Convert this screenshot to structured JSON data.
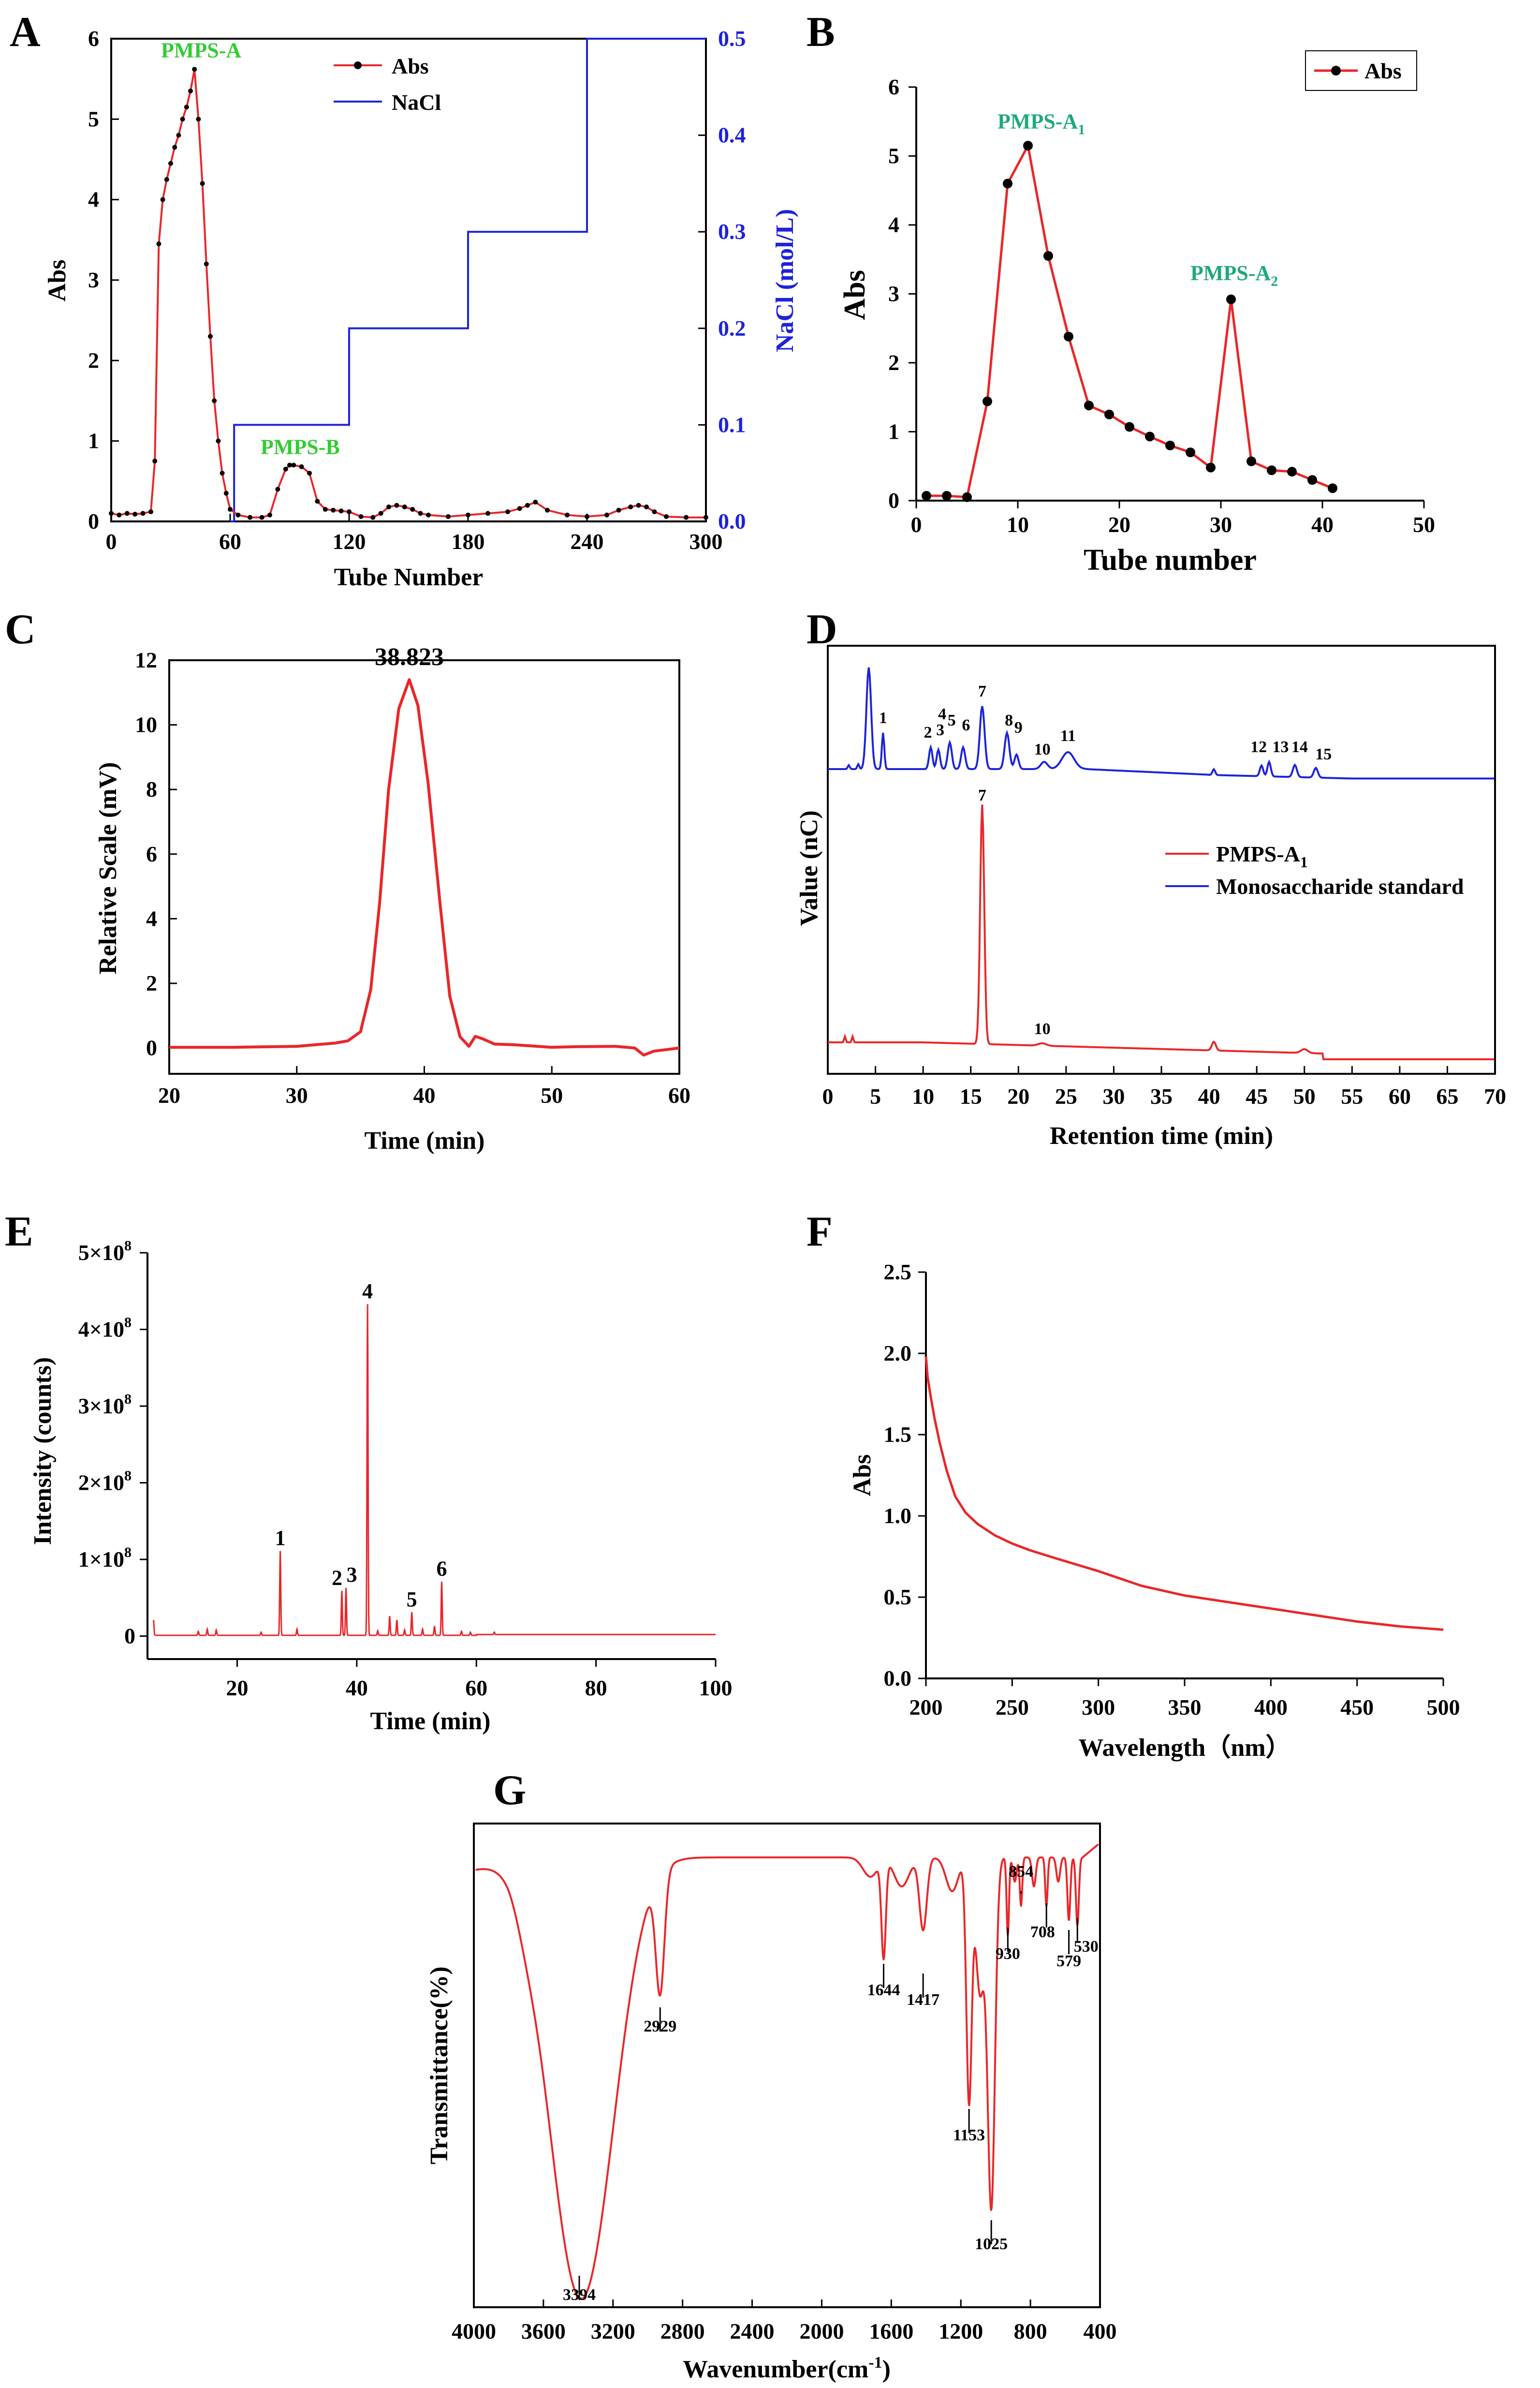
{
  "colors": {
    "red": "#e8272a",
    "blue": "#1d23d9",
    "green": "#33cc33",
    "teal": "#20a87a",
    "axis": "#000000"
  },
  "chart_data": [
    {
      "panel": "A",
      "type": "line",
      "xlabel": "Tube Number",
      "ylabel": "Abs",
      "y2label": "NaCl (mol/L)",
      "xlim": [
        0,
        300
      ],
      "ylim": [
        0,
        6
      ],
      "y2lim": [
        0,
        0.5
      ],
      "xticks": [
        "0",
        "60",
        "120",
        "180",
        "240",
        "300"
      ],
      "yticks": [
        "0",
        "1",
        "2",
        "3",
        "4",
        "5",
        "6"
      ],
      "y2ticks": [
        "0.0",
        "0.1",
        "0.2",
        "0.3",
        "0.4",
        "0.5"
      ],
      "legend": "top-center",
      "series": [
        {
          "name": "Abs",
          "color": "#e8272a",
          "marker": "dot",
          "x": [
            0,
            4,
            8,
            12,
            16,
            20,
            22,
            24,
            26,
            28,
            30,
            32,
            34,
            36,
            38,
            40,
            42,
            44,
            46,
            48,
            50,
            52,
            54,
            56,
            58,
            60,
            64,
            70,
            76,
            80,
            84,
            88,
            90,
            92,
            96,
            100,
            104,
            108,
            112,
            116,
            120,
            126,
            132,
            136,
            140,
            144,
            148,
            152,
            156,
            160,
            170,
            180,
            190,
            200,
            206,
            210,
            214,
            220,
            230,
            240,
            250,
            256,
            262,
            266,
            270,
            274,
            280,
            290,
            300
          ],
          "y": [
            0.1,
            0.08,
            0.1,
            0.09,
            0.1,
            0.12,
            0.75,
            3.45,
            4.0,
            4.25,
            4.45,
            4.65,
            4.8,
            5.0,
            5.15,
            5.35,
            5.62,
            5.0,
            4.2,
            3.2,
            2.3,
            1.5,
            1.0,
            0.6,
            0.35,
            0.15,
            0.08,
            0.05,
            0.05,
            0.08,
            0.4,
            0.65,
            0.7,
            0.7,
            0.68,
            0.6,
            0.25,
            0.15,
            0.14,
            0.13,
            0.12,
            0.06,
            0.05,
            0.1,
            0.18,
            0.2,
            0.18,
            0.15,
            0.1,
            0.08,
            0.06,
            0.08,
            0.1,
            0.12,
            0.16,
            0.2,
            0.24,
            0.14,
            0.08,
            0.06,
            0.08,
            0.14,
            0.18,
            0.2,
            0.18,
            0.12,
            0.06,
            0.05,
            0.05
          ]
        },
        {
          "name": "NaCl",
          "color": "#1d23d9",
          "axis": "y2",
          "x": [
            60,
            62,
            62,
            120,
            120,
            180,
            180,
            240,
            240,
            300
          ],
          "y": [
            0.0,
            0.0,
            0.1,
            0.1,
            0.2,
            0.2,
            0.3,
            0.3,
            0.5,
            0.5
          ]
        }
      ],
      "annotations": [
        {
          "text": "PMPS-A",
          "x": 30,
          "y": 5.8
        },
        {
          "text": "PMPS-B",
          "x": 90,
          "y": 0.9
        }
      ]
    },
    {
      "panel": "B",
      "type": "line",
      "xlabel": "Tube number",
      "ylabel": "Abs",
      "xlim": [
        0,
        50
      ],
      "ylim": [
        0,
        6
      ],
      "xticks": [
        "0",
        "10",
        "20",
        "30",
        "40",
        "50"
      ],
      "yticks": [
        "0",
        "1",
        "2",
        "3",
        "4",
        "5",
        "6"
      ],
      "legend": "top-right",
      "series": [
        {
          "name": "Abs",
          "color": "#e8272a",
          "marker": "dot",
          "x": [
            1,
            3,
            5,
            7,
            9,
            11,
            13,
            15,
            17,
            19,
            21,
            23,
            25,
            27,
            29,
            31,
            33,
            35,
            37,
            39,
            41
          ],
          "y": [
            0.07,
            0.07,
            0.05,
            1.44,
            4.6,
            5.15,
            3.55,
            2.38,
            1.38,
            1.25,
            1.07,
            0.93,
            0.8,
            0.7,
            0.48,
            2.92,
            0.57,
            0.44,
            0.42,
            0.3,
            0.18
          ]
        }
      ],
      "annotations": [
        {
          "text": "PMPS-A",
          "sub": "1",
          "x": 8,
          "y": 5.4
        },
        {
          "text": "PMPS-A",
          "sub": "2",
          "x": 27,
          "y": 3.2
        }
      ]
    },
    {
      "panel": "C",
      "type": "line",
      "xlabel": "Time (min)",
      "ylabel": "Relative Scale (mV)",
      "xlim": [
        20,
        60
      ],
      "ylim": [
        -0.8,
        12
      ],
      "xticks": [
        "20",
        "30",
        "40",
        "50",
        "60"
      ],
      "yticks": [
        "0",
        "2",
        "4",
        "6",
        "8",
        "10",
        "12"
      ],
      "series": [
        {
          "color": "#e8272a",
          "x": [
            20,
            25,
            30,
            33,
            34,
            35,
            35.8,
            36.5,
            37.2,
            38,
            38.823,
            39.5,
            40.3,
            41.2,
            42,
            42.8,
            43.5,
            44,
            44.6,
            45.5,
            47,
            50,
            52,
            55,
            56.5,
            57.2,
            58,
            60
          ],
          "y": [
            0.02,
            0.02,
            0.05,
            0.15,
            0.22,
            0.5,
            1.8,
            4.5,
            8.0,
            10.5,
            11.4,
            10.6,
            8.2,
            4.6,
            1.6,
            0.35,
            0.05,
            0.36,
            0.28,
            0.12,
            0.1,
            0.02,
            0.04,
            0.05,
            0.0,
            -0.22,
            -0.1,
            0.0
          ]
        }
      ],
      "annotations": [
        {
          "text": "38.823",
          "x": 38.823,
          "y": 11.4
        }
      ]
    },
    {
      "panel": "D",
      "type": "line",
      "xlabel": "Retention time (min)",
      "ylabel": "Value (nC)",
      "xlim": [
        0,
        70
      ],
      "xticks": [
        "0",
        "5",
        "10",
        "15",
        "20",
        "25",
        "30",
        "35",
        "40",
        "45",
        "50",
        "55",
        "60",
        "65",
        "70"
      ],
      "legend": "right",
      "series": [
        {
          "name": "Monosaccharide standard",
          "color": "#1d23d9",
          "peaks": [
            "1",
            "2",
            "3",
            "4",
            "5",
            "6",
            "7",
            "8",
            "9",
            "10",
            "11",
            "12",
            "13",
            "14",
            "15"
          ]
        },
        {
          "name": "PMPS-A",
          "name_sub": "1",
          "color": "#e8272a",
          "peaks": [
            "7",
            "10"
          ]
        }
      ]
    },
    {
      "panel": "E",
      "type": "line",
      "xlabel": "Time (min)",
      "ylabel": "Intensity (counts)",
      "xlim": [
        5,
        100
      ],
      "ylim": [
        -0.3,
        5
      ],
      "xticks": [
        "20",
        "40",
        "60",
        "80",
        "100"
      ],
      "yticks": [
        "0",
        "1×10",
        "2×10",
        "3×10",
        "4×10",
        "5×10"
      ],
      "ytick_exp": "8",
      "series": [
        {
          "color": "#e8272a",
          "peaks": [
            {
              "label": "1",
              "x": 27.2,
              "y": 1.1
            },
            {
              "label": "2",
              "x": 37.5,
              "y": 0.58
            },
            {
              "label": "3",
              "x": 38.2,
              "y": 0.62
            },
            {
              "label": "4",
              "x": 41.8,
              "y": 4.32
            },
            {
              "label": "5",
              "x": 49.2,
              "y": 0.3
            },
            {
              "label": "6",
              "x": 54.2,
              "y": 0.7
            }
          ]
        }
      ]
    },
    {
      "panel": "F",
      "type": "line",
      "xlabel": "Wavelength（nm）",
      "ylabel": "Abs",
      "xlim": [
        200,
        500
      ],
      "ylim": [
        0,
        2.5
      ],
      "xticks": [
        "200",
        "250",
        "300",
        "350",
        "400",
        "450",
        "500"
      ],
      "yticks": [
        "0.0",
        "0.5",
        "1.0",
        "1.5",
        "2.0",
        "2.5"
      ],
      "series": [
        {
          "color": "#e8272a",
          "x": [
            200,
            201,
            203,
            205,
            208,
            212,
            217,
            223,
            230,
            240,
            250,
            260,
            275,
            300,
            325,
            350,
            375,
            400,
            425,
            450,
            475,
            500
          ],
          "y": [
            1.98,
            1.85,
            1.72,
            1.6,
            1.45,
            1.28,
            1.12,
            1.02,
            0.95,
            0.88,
            0.83,
            0.79,
            0.74,
            0.66,
            0.57,
            0.51,
            0.47,
            0.43,
            0.39,
            0.35,
            0.32,
            0.3
          ]
        }
      ]
    },
    {
      "panel": "G",
      "type": "line",
      "xlabel": "Wavenumber(cm",
      "xlabel_sup": "-1",
      "xlabel_end": ")",
      "ylabel": "Transmittance(%)",
      "xlim": [
        4000,
        400
      ],
      "xticks": [
        "4000",
        "3600",
        "3200",
        "2800",
        "2400",
        "2000",
        "1600",
        "1200",
        "800",
        "400"
      ],
      "series": [
        {
          "color": "#e8272a",
          "peaks": [
            "3394",
            "2929",
            "1644",
            "1417",
            "1153",
            "1025",
            "930",
            "854",
            "708",
            "579",
            "530"
          ]
        }
      ]
    }
  ]
}
